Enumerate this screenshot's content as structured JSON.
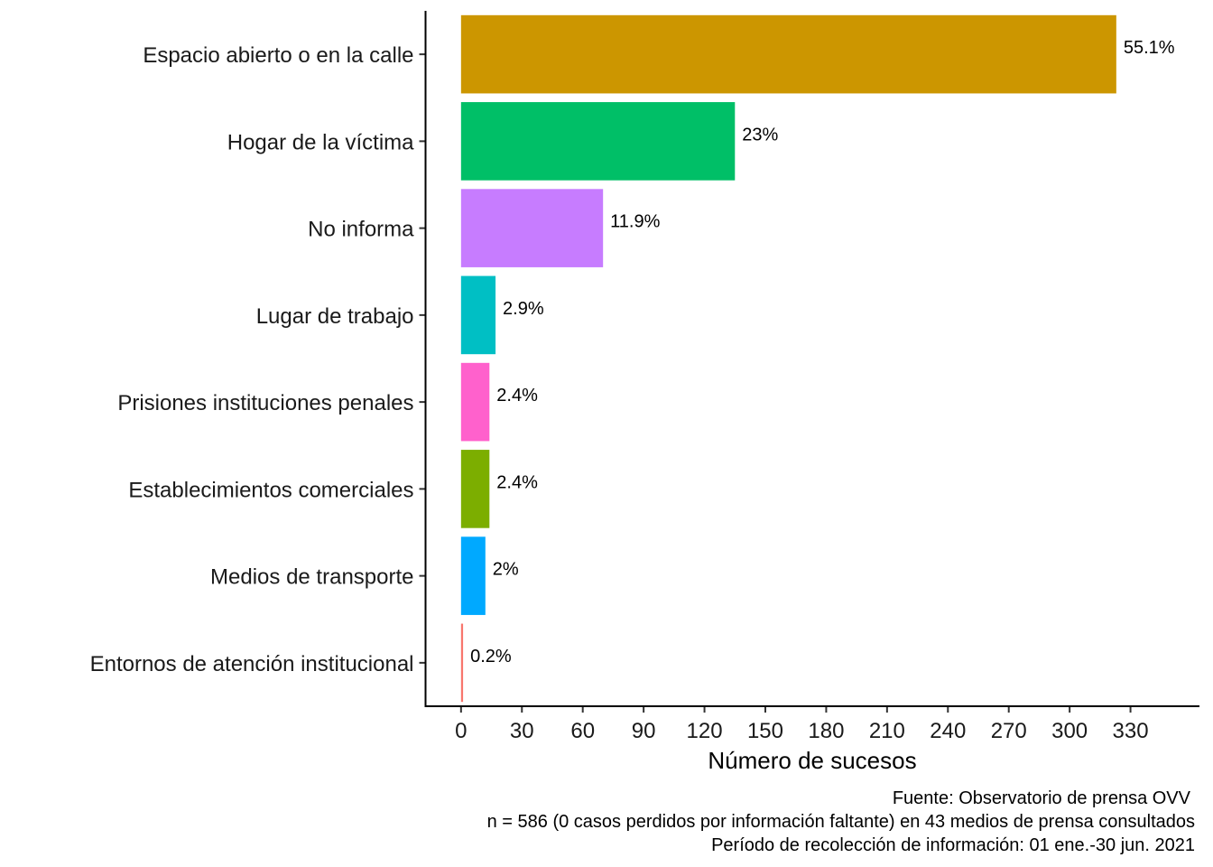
{
  "chart_data": {
    "type": "bar",
    "orientation": "horizontal",
    "categories": [
      "Espacio abierto o en la calle",
      "Hogar de la víctima",
      "No informa",
      "Lugar de trabajo",
      "Prisiones  instituciones penales",
      "Establecimientos comerciales",
      "Medios de transporte",
      "Entornos de atención institucional"
    ],
    "values": [
      323,
      135,
      70,
      17,
      14,
      14,
      12,
      1
    ],
    "data_labels": [
      "55.1%",
      "23%",
      "11.9%",
      "2.9%",
      "2.4%",
      "2.4%",
      "2%",
      "0.2%"
    ],
    "colors": [
      "#CC9600",
      "#00BF67",
      "#C77CFF",
      "#00BFC4",
      "#FF61CC",
      "#7CAE00",
      "#00A9FF",
      "#F8766D"
    ],
    "xlabel": "Número de sucesos",
    "ylabel": "",
    "xticks": [
      0,
      30,
      60,
      90,
      120,
      150,
      180,
      210,
      240,
      270,
      300,
      330
    ],
    "xlim": [
      -17.5,
      364
    ],
    "grid": false,
    "legend": "none",
    "caption": [
      "Fuente: Observatorio de prensa OVV",
      "n = 586 (0 casos perdidos por información faltante) en 43 medios de prensa consultados",
      "Período de recolección de información: 01 ene.-30 jun. 2021"
    ]
  }
}
